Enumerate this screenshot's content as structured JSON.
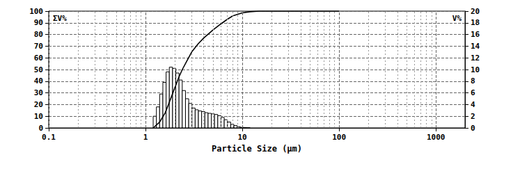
{
  "chart_data": {
    "type": "histogram",
    "xlabel": "Particle Size (μm)",
    "ylabel": "ΣV%",
    "y2label": "V%",
    "log": "x",
    "grid": true,
    "xlim": [
      0.1,
      2000
    ],
    "xticks": [
      0.1,
      1,
      10,
      100,
      1000
    ],
    "ylim": [
      0,
      100
    ],
    "yticks": [
      0,
      10,
      20,
      30,
      40,
      50,
      60,
      70,
      80,
      90,
      100
    ],
    "y2lim": [
      0,
      20
    ],
    "y2ticks": [
      0,
      2,
      4,
      6,
      8,
      10,
      12,
      14,
      16,
      18,
      20
    ],
    "series": [
      {
        "type": "bar",
        "axis": "y2",
        "color": "#000000",
        "bins": [
          1.2,
          1.296,
          1.399,
          1.511,
          1.632,
          1.762,
          1.903,
          2.055,
          2.219,
          2.396,
          2.588,
          2.794,
          3.018,
          3.258,
          3.519,
          3.8,
          4.103,
          4.43,
          4.784,
          5.166,
          5.578,
          6.023,
          6.504,
          7.023,
          7.583,
          8.188,
          8.842,
          9.547,
          10.31,
          11.13,
          12.02
        ],
        "values": [
          2.0,
          3.6,
          5.8,
          7.8,
          9.6,
          10.4,
          10.2,
          9.4,
          8.2,
          6.4,
          5.0,
          4.2,
          3.4,
          3.1,
          2.9,
          2.8,
          2.6,
          2.5,
          2.4,
          2.3,
          2.1,
          1.8,
          1.4,
          1.0,
          0.6,
          0.4,
          0.2,
          0.1,
          0.05,
          0.02
        ]
      },
      {
        "type": "line",
        "color": "#000000",
        "x": [
          1.2,
          1.4,
          1.6,
          1.8,
          2.0,
          2.2,
          2.4,
          2.7,
          3.0,
          3.5,
          4,
          5,
          6,
          7,
          8,
          10,
          12,
          15,
          20,
          50,
          100
        ],
        "values": [
          0,
          5,
          13,
          24,
          34,
          43,
          50,
          58,
          65,
          72,
          77,
          84,
          89,
          93,
          96,
          98.5,
          99.5,
          100,
          100,
          100,
          100
        ]
      }
    ]
  }
}
